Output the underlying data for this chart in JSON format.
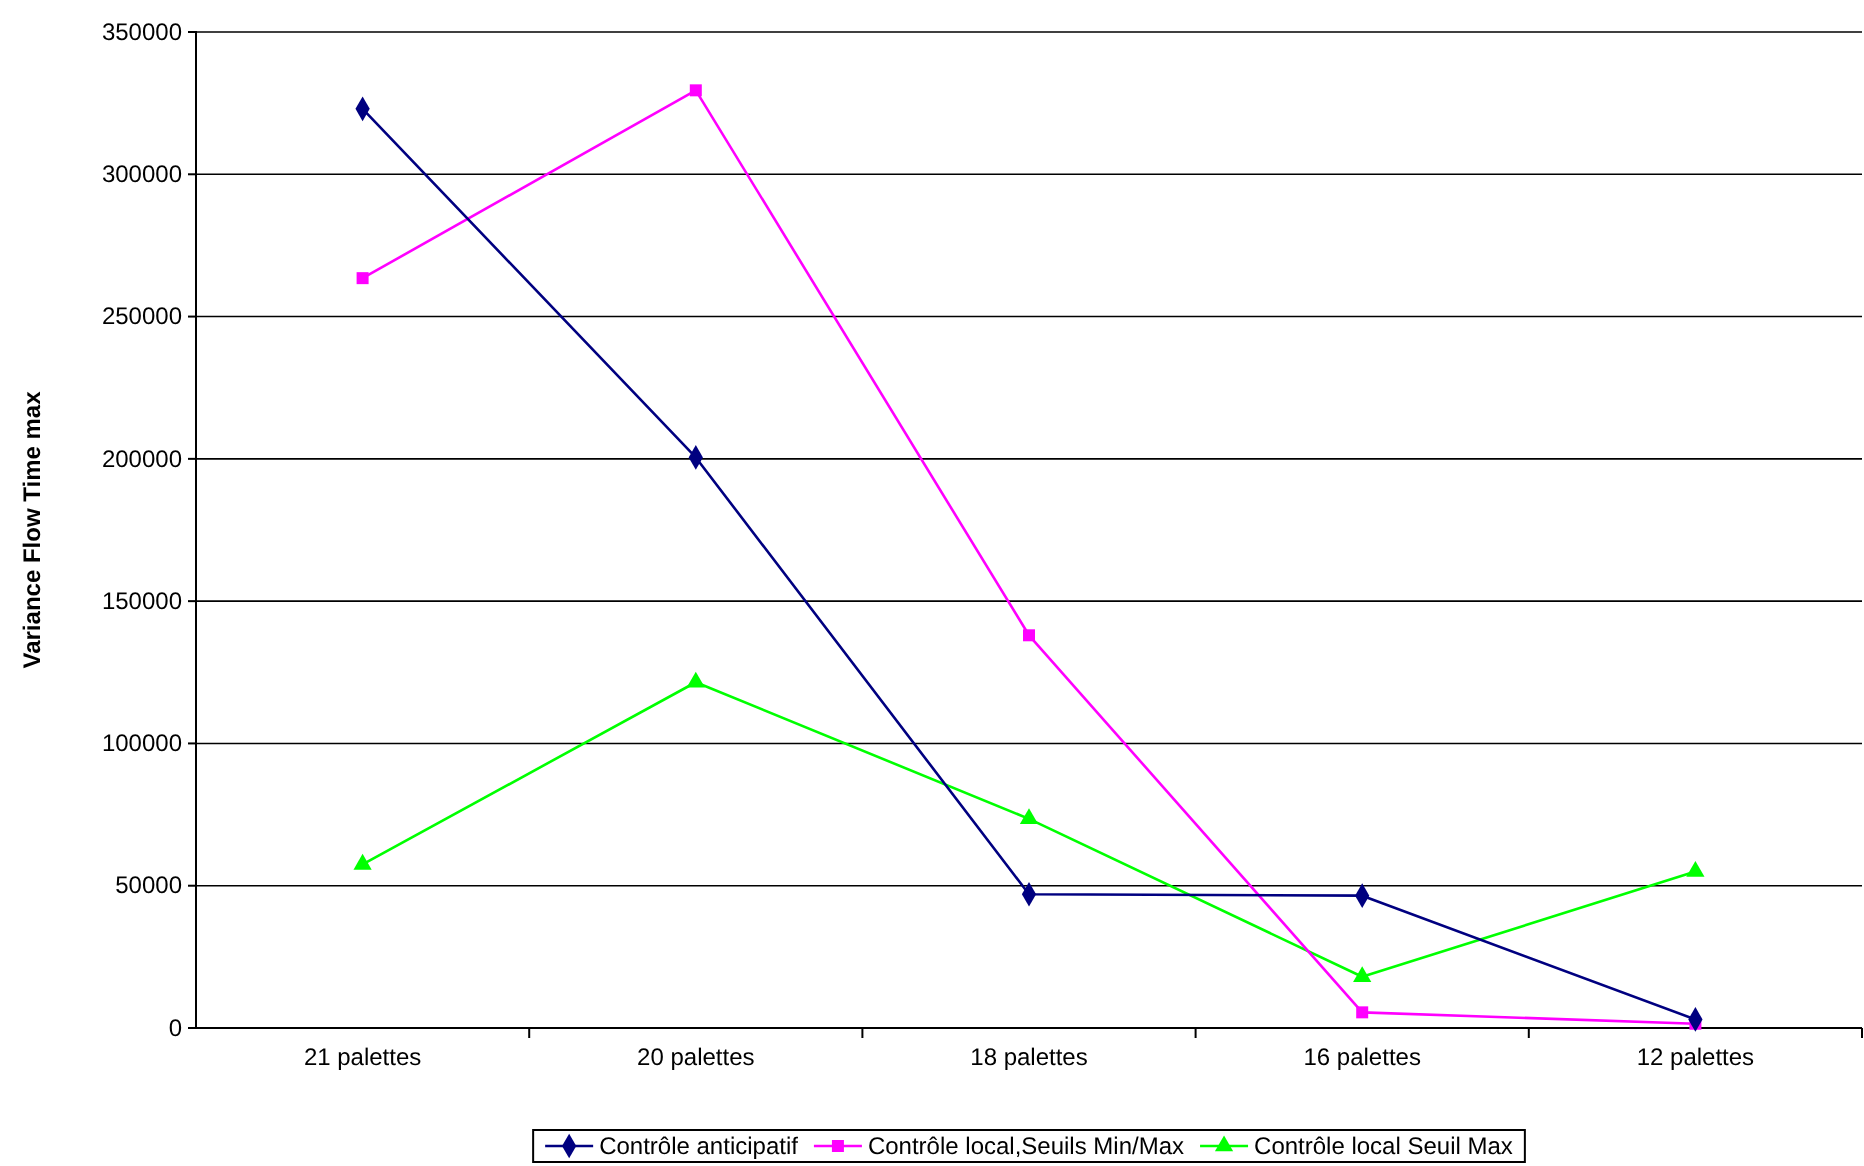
{
  "chart_data": {
    "type": "line",
    "ylabel": "Variance Flow Time max",
    "categories": [
      "21 palettes",
      "20 palettes",
      "18 palettes",
      "16 palettes",
      "12 palettes"
    ],
    "series": [
      {
        "name": "Contrôle anticipatif",
        "color": "#000080",
        "marker": "diamond",
        "values": [
          323000,
          200500,
          47000,
          46500,
          3000
        ]
      },
      {
        "name": "Contrôle local,Seuils Min/Max",
        "color": "#ff00ff",
        "marker": "square",
        "values": [
          263500,
          329500,
          138000,
          5500,
          1500
        ]
      },
      {
        "name": "Contrôle local Seuil Max",
        "color": "#00ff00",
        "marker": "triangle",
        "values": [
          57500,
          121500,
          73500,
          18000,
          55000
        ]
      }
    ],
    "ylim": [
      0,
      350000
    ],
    "yticks": [
      0,
      50000,
      100000,
      150000,
      200000,
      250000,
      300000,
      350000
    ],
    "grid": "y",
    "legend": "bottom",
    "line_style": "solid"
  }
}
